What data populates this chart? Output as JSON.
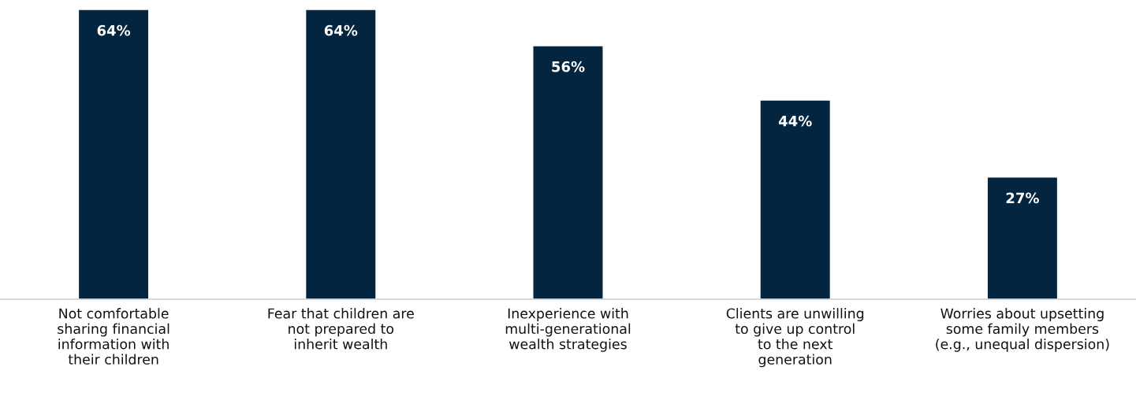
{
  "chart_data": {
    "type": "bar",
    "categories": [
      "Not comfortable\nsharing financial\ninformation with\ntheir children",
      "Fear that children are\nnot prepared to\ninherit wealth",
      "Inexperience with\nmulti-generational\nwealth strategies",
      "Clients are unwilling\nto give up control\nto the next\ngeneration",
      "Worries about upsetting\nsome family members\n(e.g., unequal dispersion)"
    ],
    "values": [
      64,
      64,
      56,
      44,
      27
    ],
    "value_labels": [
      "64%",
      "64%",
      "56%",
      "44%",
      "27%"
    ],
    "color": "#03253f",
    "grid": false,
    "legend": false
  }
}
